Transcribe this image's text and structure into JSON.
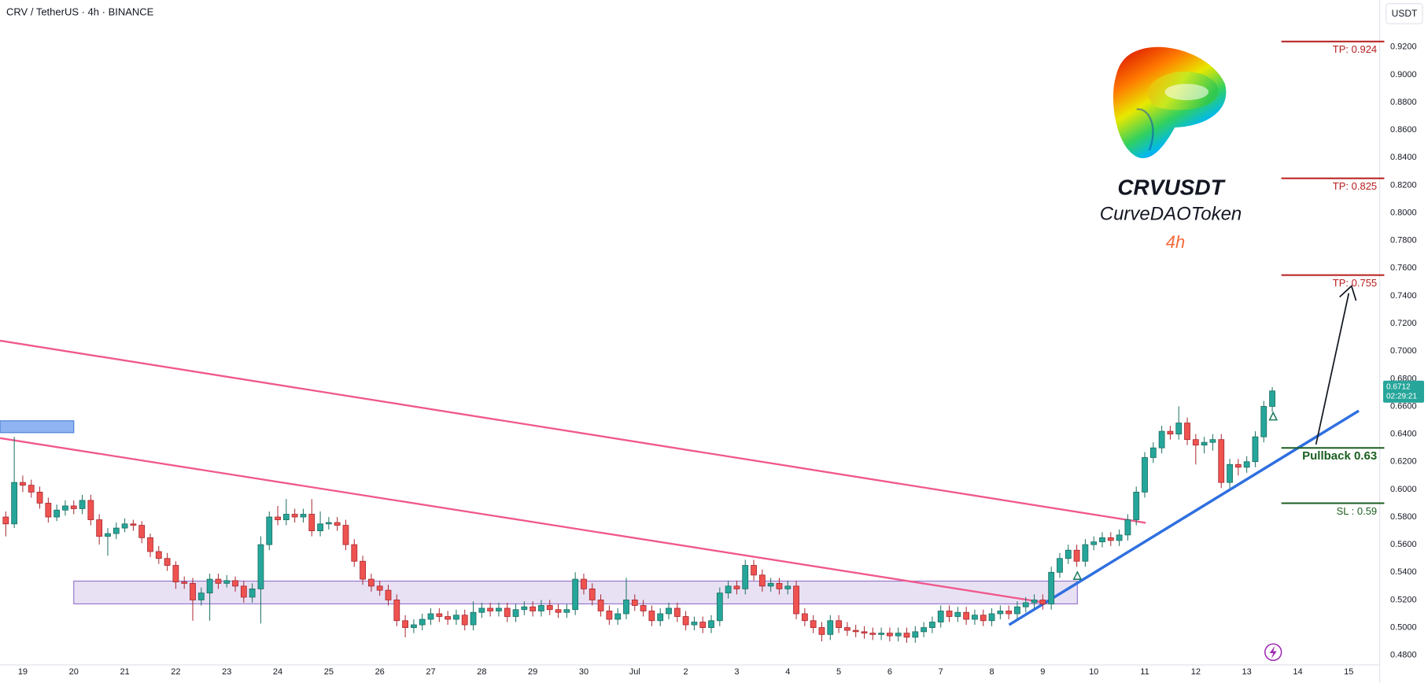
{
  "chart_data": {
    "type": "candlestick",
    "title": "CRV / TetherUS · 4h · BINANCE",
    "currency": "USDT",
    "symbol": "CRVUSDT",
    "name": "CurveDAOToken",
    "timeframe": "4h",
    "countdown": "02:29:21",
    "up_color": "#26a69a",
    "down_color": "#ef5350",
    "ylim": [
      0.473,
      0.954
    ],
    "yticks": [
      {
        "value": 0.48,
        "label": "0.4800"
      },
      {
        "value": 0.5,
        "label": "0.5000"
      },
      {
        "value": 0.52,
        "label": "0.5200"
      },
      {
        "value": 0.54,
        "label": "0.5400"
      },
      {
        "value": 0.56,
        "label": "0.5600"
      },
      {
        "value": 0.58,
        "label": "0.5800"
      },
      {
        "value": 0.6,
        "label": "0.6000"
      },
      {
        "value": 0.62,
        "label": "0.6200"
      },
      {
        "value": 0.64,
        "label": "0.6400"
      },
      {
        "value": 0.66,
        "label": "0.6600"
      },
      {
        "value": 0.68,
        "label": "0.6800"
      },
      {
        "value": 0.7,
        "label": "0.7000"
      },
      {
        "value": 0.72,
        "label": "0.7200"
      },
      {
        "value": 0.74,
        "label": "0.7400"
      },
      {
        "value": 0.76,
        "label": "0.7600"
      },
      {
        "value": 0.78,
        "label": "0.7800"
      },
      {
        "value": 0.8,
        "label": "0.8000"
      },
      {
        "value": 0.82,
        "label": "0.8200"
      },
      {
        "value": 0.84,
        "label": "0.8400"
      },
      {
        "value": 0.86,
        "label": "0.8600"
      },
      {
        "value": 0.88,
        "label": "0.8800"
      },
      {
        "value": 0.9,
        "label": "0.9000"
      },
      {
        "value": 0.92,
        "label": "0.9200"
      }
    ],
    "levels": [
      {
        "label": "TP: 0.924",
        "value": 0.924,
        "color": "#b71c1c"
      },
      {
        "label": "TP: 0.825",
        "value": 0.825,
        "color": "#b71c1c"
      },
      {
        "label": "TP: 0.755",
        "value": 0.755,
        "color": "#b71c1c"
      },
      {
        "label": "Pullback 0.63",
        "value": 0.63,
        "color": "#1b5e20"
      },
      {
        "label": "SL : 0.59",
        "value": 0.59,
        "color": "#1b5e20"
      }
    ],
    "categories": [
      null,
      null,
      null,
      "19",
      null,
      null,
      null,
      null,
      null,
      "20",
      null,
      null,
      null,
      null,
      null,
      "21",
      null,
      null,
      null,
      null,
      null,
      "22",
      null,
      null,
      null,
      null,
      null,
      "23",
      null,
      null,
      null,
      null,
      null,
      "24",
      null,
      null,
      null,
      null,
      null,
      "25",
      null,
      null,
      null,
      null,
      null,
      "26",
      null,
      null,
      null,
      null,
      null,
      "27",
      null,
      null,
      null,
      null,
      null,
      "28",
      null,
      null,
      null,
      null,
      null,
      "29",
      null,
      null,
      null,
      null,
      null,
      "30",
      null,
      null,
      null,
      null,
      null,
      "Jul",
      null,
      null,
      null,
      null,
      null,
      "2",
      null,
      null,
      null,
      null,
      null,
      "3",
      null,
      null,
      null,
      null,
      null,
      "4",
      null,
      null,
      null,
      null,
      null,
      "5",
      null,
      null,
      null,
      null,
      null,
      "6",
      null,
      null,
      null,
      null,
      null,
      "7",
      null,
      null,
      null,
      null,
      null,
      "8",
      null,
      null,
      null,
      null,
      null,
      "9",
      null,
      null,
      null,
      null,
      null,
      "10",
      null,
      null,
      null,
      null,
      null,
      "11",
      null,
      null,
      null,
      null,
      null,
      "12",
      null,
      null,
      null,
      null,
      null,
      "13",
      null,
      null,
      null,
      null,
      null,
      "14",
      null,
      null,
      null,
      null,
      null,
      "15",
      null,
      null,
      null
    ],
    "values": [
      null,
      [
        0.58,
        0.584,
        0.566,
        0.575
      ],
      [
        0.575,
        0.638,
        0.572,
        0.605
      ],
      [
        0.605,
        0.61,
        0.598,
        0.603
      ],
      [
        0.603,
        0.607,
        0.594,
        0.598
      ],
      [
        0.598,
        0.602,
        0.586,
        0.59
      ],
      [
        0.59,
        0.594,
        0.576,
        0.58
      ],
      [
        0.58,
        0.589,
        0.577,
        0.585
      ],
      [
        0.585,
        0.592,
        0.581,
        0.588
      ],
      [
        0.588,
        0.592,
        0.582,
        0.586
      ],
      [
        0.586,
        0.596,
        0.582,
        0.592
      ],
      [
        0.592,
        0.596,
        0.574,
        0.578
      ],
      [
        0.578,
        0.582,
        0.56,
        0.566
      ],
      [
        0.566,
        0.572,
        0.552,
        0.568
      ],
      [
        0.568,
        0.576,
        0.564,
        0.572
      ],
      [
        0.572,
        0.579,
        0.569,
        0.575
      ],
      [
        0.575,
        0.578,
        0.57,
        0.574
      ],
      [
        0.574,
        0.577,
        0.561,
        0.565
      ],
      [
        0.565,
        0.568,
        0.551,
        0.555
      ],
      [
        0.555,
        0.559,
        0.546,
        0.55
      ],
      [
        0.55,
        0.554,
        0.541,
        0.545
      ],
      [
        0.545,
        0.548,
        0.528,
        0.533
      ],
      [
        0.533,
        0.537,
        0.528,
        0.532
      ],
      [
        0.532,
        0.536,
        0.505,
        0.52
      ],
      [
        0.52,
        0.529,
        0.516,
        0.525
      ],
      [
        0.525,
        0.539,
        0.505,
        0.535
      ],
      [
        0.535,
        0.539,
        0.528,
        0.532
      ],
      [
        0.532,
        0.538,
        0.529,
        0.534
      ],
      [
        0.534,
        0.537,
        0.526,
        0.53
      ],
      [
        0.53,
        0.534,
        0.518,
        0.522
      ],
      [
        0.522,
        0.532,
        0.518,
        0.528
      ],
      [
        0.528,
        0.566,
        0.503,
        0.56
      ],
      [
        0.56,
        0.584,
        0.556,
        0.58
      ],
      [
        0.58,
        0.588,
        0.574,
        0.578
      ],
      [
        0.578,
        0.593,
        0.574,
        0.582
      ],
      [
        0.582,
        0.586,
        0.576,
        0.58
      ],
      [
        0.58,
        0.586,
        0.576,
        0.582
      ],
      [
        0.582,
        0.593,
        0.566,
        0.57
      ],
      [
        0.57,
        0.584,
        0.566,
        0.575
      ],
      [
        0.575,
        0.58,
        0.571,
        0.576
      ],
      [
        0.576,
        0.58,
        0.57,
        0.574
      ],
      [
        0.574,
        0.578,
        0.556,
        0.56
      ],
      [
        0.56,
        0.564,
        0.544,
        0.548
      ],
      [
        0.548,
        0.552,
        0.531,
        0.535
      ],
      [
        0.535,
        0.539,
        0.526,
        0.53
      ],
      [
        0.53,
        0.534,
        0.523,
        0.527
      ],
      [
        0.527,
        0.531,
        0.516,
        0.52
      ],
      [
        0.52,
        0.524,
        0.501,
        0.505
      ],
      [
        0.505,
        0.509,
        0.493,
        0.5
      ],
      [
        0.5,
        0.506,
        0.496,
        0.502
      ],
      [
        0.502,
        0.51,
        0.498,
        0.506
      ],
      [
        0.506,
        0.514,
        0.502,
        0.51
      ],
      [
        0.51,
        0.514,
        0.504,
        0.508
      ],
      [
        0.508,
        0.512,
        0.502,
        0.506
      ],
      [
        0.506,
        0.513,
        0.502,
        0.509
      ],
      [
        0.509,
        0.513,
        0.498,
        0.502
      ],
      [
        0.502,
        0.519,
        0.498,
        0.511
      ],
      [
        0.511,
        0.518,
        0.507,
        0.514
      ],
      [
        0.514,
        0.518,
        0.508,
        0.512
      ],
      [
        0.512,
        0.518,
        0.508,
        0.514
      ],
      [
        0.514,
        0.518,
        0.504,
        0.508
      ],
      [
        0.508,
        0.517,
        0.504,
        0.513
      ],
      [
        0.513,
        0.519,
        0.509,
        0.515
      ],
      [
        0.515,
        0.519,
        0.508,
        0.512
      ],
      [
        0.512,
        0.52,
        0.508,
        0.516
      ],
      [
        0.516,
        0.52,
        0.509,
        0.513
      ],
      [
        0.513,
        0.517,
        0.507,
        0.511
      ],
      [
        0.511,
        0.517,
        0.507,
        0.513
      ],
      [
        0.513,
        0.54,
        0.509,
        0.535
      ],
      [
        0.535,
        0.539,
        0.524,
        0.528
      ],
      [
        0.528,
        0.532,
        0.516,
        0.52
      ],
      [
        0.52,
        0.524,
        0.508,
        0.512
      ],
      [
        0.512,
        0.516,
        0.502,
        0.506
      ],
      [
        0.506,
        0.514,
        0.502,
        0.51
      ],
      [
        0.51,
        0.536,
        0.506,
        0.52
      ],
      [
        0.52,
        0.524,
        0.512,
        0.516
      ],
      [
        0.516,
        0.52,
        0.508,
        0.512
      ],
      [
        0.512,
        0.516,
        0.501,
        0.505
      ],
      [
        0.505,
        0.514,
        0.501,
        0.51
      ],
      [
        0.51,
        0.518,
        0.506,
        0.514
      ],
      [
        0.514,
        0.518,
        0.504,
        0.508
      ],
      [
        0.508,
        0.512,
        0.498,
        0.502
      ],
      [
        0.502,
        0.508,
        0.498,
        0.504
      ],
      [
        0.504,
        0.508,
        0.496,
        0.5
      ],
      [
        0.5,
        0.509,
        0.496,
        0.505
      ],
      [
        0.505,
        0.529,
        0.501,
        0.525
      ],
      [
        0.525,
        0.534,
        0.521,
        0.53
      ],
      [
        0.53,
        0.534,
        0.524,
        0.528
      ],
      [
        0.528,
        0.549,
        0.524,
        0.545
      ],
      [
        0.545,
        0.549,
        0.534,
        0.538
      ],
      [
        0.538,
        0.542,
        0.526,
        0.53
      ],
      [
        0.53,
        0.536,
        0.526,
        0.532
      ],
      [
        0.532,
        0.536,
        0.524,
        0.528
      ],
      [
        0.528,
        0.534,
        0.524,
        0.53
      ],
      [
        0.53,
        0.534,
        0.506,
        0.51
      ],
      [
        0.51,
        0.514,
        0.501,
        0.505
      ],
      [
        0.505,
        0.509,
        0.496,
        0.5
      ],
      [
        0.5,
        0.504,
        0.49,
        0.495
      ],
      [
        0.495,
        0.509,
        0.491,
        0.505
      ],
      [
        0.505,
        0.509,
        0.496,
        0.5
      ],
      [
        0.5,
        0.504,
        0.494,
        0.498
      ],
      [
        0.498,
        0.502,
        0.493,
        0.497
      ],
      [
        0.497,
        0.501,
        0.492,
        0.496
      ],
      [
        0.496,
        0.5,
        0.491,
        0.495
      ],
      [
        0.495,
        0.5,
        0.491,
        0.496
      ],
      [
        0.496,
        0.5,
        0.49,
        0.494
      ],
      [
        0.494,
        0.5,
        0.49,
        0.496
      ],
      [
        0.496,
        0.5,
        0.489,
        0.493
      ],
      [
        0.493,
        0.501,
        0.489,
        0.497
      ],
      [
        0.497,
        0.504,
        0.493,
        0.5
      ],
      [
        0.5,
        0.508,
        0.496,
        0.504
      ],
      [
        0.504,
        0.516,
        0.5,
        0.512
      ],
      [
        0.512,
        0.516,
        0.504,
        0.508
      ],
      [
        0.508,
        0.515,
        0.504,
        0.511
      ],
      [
        0.511,
        0.515,
        0.502,
        0.506
      ],
      [
        0.506,
        0.513,
        0.502,
        0.509
      ],
      [
        0.509,
        0.513,
        0.501,
        0.505
      ],
      [
        0.505,
        0.514,
        0.501,
        0.51
      ],
      [
        0.51,
        0.516,
        0.506,
        0.512
      ],
      [
        0.512,
        0.516,
        0.506,
        0.51
      ],
      [
        0.51,
        0.519,
        0.506,
        0.515
      ],
      [
        0.515,
        0.522,
        0.511,
        0.518
      ],
      [
        0.518,
        0.524,
        0.514,
        0.52
      ],
      [
        0.52,
        0.524,
        0.513,
        0.517
      ],
      [
        0.517,
        0.544,
        0.513,
        0.54
      ],
      [
        0.54,
        0.554,
        0.536,
        0.55
      ],
      [
        0.55,
        0.56,
        0.546,
        0.556
      ],
      [
        0.556,
        0.56,
        0.544,
        0.548
      ],
      [
        0.548,
        0.564,
        0.544,
        0.56
      ],
      [
        0.56,
        0.566,
        0.556,
        0.562
      ],
      [
        0.562,
        0.569,
        0.558,
        0.565
      ],
      [
        0.565,
        0.569,
        0.559,
        0.563
      ],
      [
        0.563,
        0.571,
        0.559,
        0.567
      ],
      [
        0.567,
        0.582,
        0.563,
        0.578
      ],
      [
        0.578,
        0.602,
        0.574,
        0.598
      ],
      [
        0.598,
        0.627,
        0.594,
        0.623
      ],
      [
        0.623,
        0.634,
        0.619,
        0.63
      ],
      [
        0.63,
        0.646,
        0.626,
        0.642
      ],
      [
        0.642,
        0.646,
        0.636,
        0.64
      ],
      [
        0.64,
        0.66,
        0.636,
        0.648
      ],
      [
        0.648,
        0.652,
        0.632,
        0.636
      ],
      [
        0.636,
        0.64,
        0.618,
        0.632
      ],
      [
        0.632,
        0.638,
        0.626,
        0.634
      ],
      [
        0.634,
        0.64,
        0.628,
        0.636
      ],
      [
        0.636,
        0.64,
        0.601,
        0.605
      ],
      [
        0.605,
        0.622,
        0.601,
        0.618
      ],
      [
        0.618,
        0.622,
        0.61,
        0.616
      ],
      [
        0.616,
        0.624,
        0.612,
        0.62
      ],
      [
        0.62,
        0.642,
        0.616,
        0.638
      ],
      [
        0.638,
        0.664,
        0.634,
        0.66
      ],
      [
        0.66,
        0.674,
        0.656,
        0.6712
      ],
      null,
      null,
      null,
      null,
      null,
      null,
      null,
      null,
      null,
      null,
      null,
      null
    ]
  }
}
